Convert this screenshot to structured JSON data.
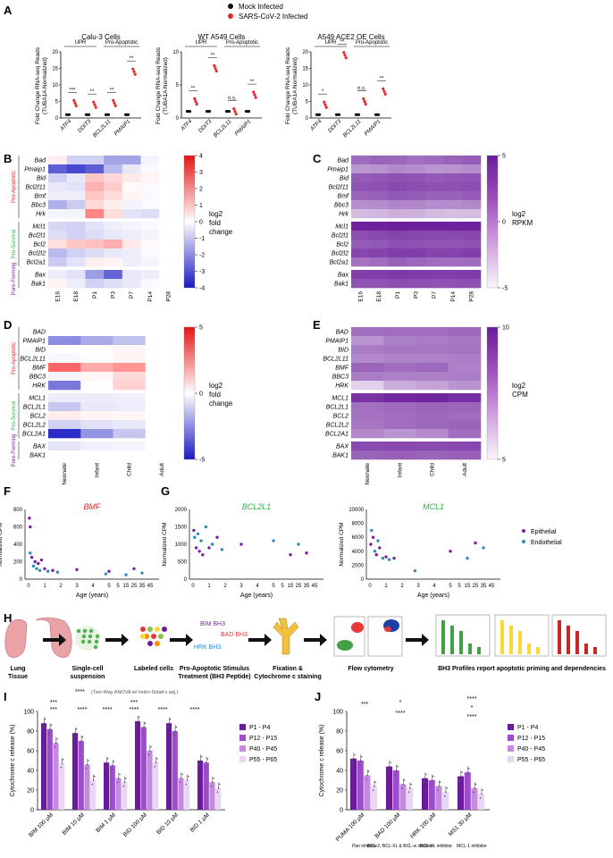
{
  "panels": {
    "A": "A",
    "B": "B",
    "C": "C",
    "D": "D",
    "E": "E",
    "F": "F",
    "G": "G",
    "H": "H",
    "I": "I",
    "J": "J"
  },
  "legend_top": {
    "mock": "Mock Infected",
    "sars": "SARS-CoV-2 Infected",
    "mock_color": "#111111",
    "sars_color": "#e8262b"
  },
  "a_charts": {
    "ylabel1": "Fold Change RNA-seq Reads",
    "ylabel2": "(TUBA1A Normalized)",
    "upr": "UPR",
    "proapop": "Pro-Apoptotic",
    "genes": [
      "ATF4",
      "DDIT3",
      "BCL2L11",
      "PMAIP1"
    ],
    "charts": [
      {
        "title": "Calu-3 Cells",
        "yticks": [
          "0",
          "5",
          "10",
          "15",
          "20"
        ],
        "sig": [
          "***",
          "**",
          "**",
          "**"
        ]
      },
      {
        "title": "WT A549 Cells",
        "yticks": [
          "0",
          "5",
          "10"
        ],
        "sig": [
          "**",
          "**",
          "n.s.",
          "**"
        ]
      },
      {
        "title": "A549 ACE2 OE Cells",
        "yticks": [
          "0",
          "5",
          "10",
          "15",
          "20"
        ],
        "sig": [
          "*",
          "**",
          "n.s.",
          "**"
        ]
      }
    ]
  },
  "mouse_genes": [
    "Bad",
    "Pmaip1",
    "Bid",
    "Bcl2l11",
    "Bmf",
    "Bbc3",
    "Hrk",
    "Mcl1",
    "Bcl2l1",
    "Bcl2",
    "Bcl2l2",
    "Bcl2a1",
    "Bax",
    "Bak1"
  ],
  "human_genes": [
    "BAD",
    "PMAIP1",
    "BID",
    "BCL2L11",
    "BMF",
    "BBC3",
    "HRK",
    "MCL1",
    "BCL2L1",
    "BCL2",
    "BCL2L2",
    "BCL2A1",
    "BAX",
    "BAK1"
  ],
  "groups": {
    "pro_apoptotic": "Pro-Apoptotic",
    "pro_survival": "Pro-Survival",
    "pore_forming": "Pore-Forming"
  },
  "b_cols": [
    "E16",
    "E18",
    "P1",
    "P3",
    "P7",
    "P14",
    "P28"
  ],
  "c_cols": [
    "E16",
    "E18",
    "P1",
    "P3",
    "P7",
    "P14",
    "P28"
  ],
  "de_cols": [
    "Neonate",
    "Infant",
    "Child",
    "Adult"
  ],
  "b_colorbar": {
    "ticks": [
      "4",
      "3",
      "2",
      "1",
      "0",
      "-1",
      "-2",
      "-3",
      "-4"
    ],
    "label1": "log",
    "label1_sub": "2",
    "label2": "fold",
    "label3": "change"
  },
  "c_colorbar": {
    "ticks": [
      "5",
      "0",
      "-5"
    ],
    "label1": "log",
    "label1_sub": "2",
    "label2": "RPKM"
  },
  "d_colorbar": {
    "ticks": [
      "5",
      "0",
      "-5"
    ],
    "label1": "log",
    "label1_sub": "2",
    "label2": "fold",
    "label3": "change"
  },
  "e_colorbar": {
    "ticks": [
      "10",
      "5"
    ],
    "label1": "log",
    "label1_sub": "2",
    "label2": "CPM"
  },
  "b_values": [
    [
      0.3,
      -0.8,
      -0.8,
      -1.6,
      -1.6,
      -0.2,
      0
    ],
    [
      -2.8,
      -3.2,
      -2.8,
      -1.2,
      -0.4,
      -0.1,
      0
    ],
    [
      -0.8,
      -0.4,
      1.0,
      0.7,
      0.4,
      0.2,
      0
    ],
    [
      -0.4,
      -0.5,
      1.4,
      0.9,
      0.1,
      -0.1,
      0
    ],
    [
      -0.3,
      -0.3,
      1.0,
      0.6,
      0.2,
      -0.1,
      0
    ],
    [
      -1.4,
      -0.9,
      0.7,
      0.3,
      -0.2,
      -0.1,
      0
    ],
    [
      -0.2,
      -0.2,
      2.1,
      0.6,
      -0.5,
      -0.6,
      0
    ],
    [
      -0.7,
      -0.8,
      -0.5,
      -0.3,
      -0.2,
      -0.1,
      0
    ],
    [
      -0.6,
      -0.8,
      -0.6,
      -0.4,
      -0.3,
      -0.2,
      0
    ],
    [
      0.6,
      1.0,
      1.1,
      1.4,
      0.4,
      0.1,
      0
    ],
    [
      -1.2,
      -0.8,
      -0.6,
      -0.4,
      -0.3,
      -0.1,
      0
    ],
    [
      -0.9,
      -0.5,
      0.3,
      0.2,
      -0.3,
      -0.2,
      0
    ],
    [
      -0.3,
      -0.5,
      -1.7,
      -2.7,
      -0.4,
      -0.3,
      0
    ],
    [
      0.2,
      -0.3,
      -0.8,
      -0.6,
      -0.4,
      -0.1,
      0
    ]
  ],
  "c_values": [
    [
      3.5,
      4.0,
      3.8,
      3.2,
      3.5,
      4.0,
      4.5
    ],
    [
      0.5,
      0.8,
      1.5,
      1.2,
      0.6,
      0.8,
      1.2
    ],
    [
      4.5,
      4.8,
      5.2,
      5.0,
      4.6,
      4.8,
      5.0
    ],
    [
      5.0,
      5.2,
      5.8,
      5.5,
      5.2,
      5.2,
      5.5
    ],
    [
      4.0,
      4.2,
      4.8,
      4.5,
      4.2,
      4.2,
      4.5
    ],
    [
      1.0,
      1.2,
      1.8,
      1.6,
      1.2,
      1.2,
      1.5
    ],
    [
      -2.0,
      -1.8,
      -1.2,
      -1.4,
      -2.0,
      -2.2,
      -2.0
    ],
    [
      8.5,
      8.6,
      8.8,
      8.7,
      8.6,
      8.5,
      8.6
    ],
    [
      5.5,
      5.8,
      6.2,
      6.0,
      5.8,
      5.8,
      6.0
    ],
    [
      4.5,
      4.8,
      5.4,
      5.2,
      5.0,
      5.0,
      5.2
    ],
    [
      6.0,
      6.2,
      6.6,
      6.5,
      6.2,
      6.2,
      6.5
    ],
    [
      3.0,
      3.4,
      4.2,
      3.8,
      3.4,
      3.2,
      3.4
    ],
    [
      6.5,
      6.6,
      6.9,
      6.8,
      6.6,
      6.6,
      6.8
    ],
    [
      5.0,
      5.2,
      5.6,
      5.4,
      5.2,
      5.2,
      5.4
    ]
  ],
  "d_values": [
    [
      0,
      0,
      0,
      0
    ],
    [
      -3.0,
      -2.2,
      -1.6,
      0
    ],
    [
      0,
      0,
      0.2,
      0
    ],
    [
      -0.2,
      0,
      0.3,
      0
    ],
    [
      4.0,
      2.2,
      2.8,
      0
    ],
    [
      -0.3,
      0.2,
      1.0,
      0
    ],
    [
      -3.5,
      0,
      1.2,
      0
    ],
    [
      -0.5,
      -0.5,
      -0.4,
      0
    ],
    [
      -1.5,
      -0.6,
      -0.5,
      0
    ],
    [
      0.5,
      0.3,
      0.2,
      0
    ],
    [
      -1.2,
      -0.8,
      -0.6,
      0
    ],
    [
      -5.5,
      -2.8,
      -1.5,
      0
    ],
    [
      -0.7,
      -0.4,
      -0.3,
      0
    ],
    [
      0,
      0,
      0,
      0
    ]
  ],
  "e_values": [
    [
      8.5,
      8.6,
      8.6,
      8.8
    ],
    [
      7.0,
      7.8,
      8.0,
      8.2
    ],
    [
      8.0,
      8.2,
      8.2,
      8.3
    ],
    [
      7.5,
      7.8,
      7.8,
      7.9
    ],
    [
      9.0,
      8.6,
      8.8,
      7.8
    ],
    [
      8.0,
      7.8,
      7.8,
      7.9
    ],
    [
      4.5,
      6.0,
      6.4,
      7.0
    ],
    [
      11.0,
      11.5,
      11.6,
      11.2
    ],
    [
      8.5,
      8.8,
      9.0,
      8.9
    ],
    [
      8.4,
      8.6,
      8.8,
      8.6
    ],
    [
      8.2,
      8.6,
      8.8,
      9.0
    ],
    [
      7.5,
      7.0,
      7.4,
      8.6
    ],
    [
      10.0,
      10.2,
      10.0,
      10.2
    ],
    [
      9.0,
      9.2,
      9.0,
      9.2
    ]
  ],
  "f": {
    "title": "BMF",
    "title_color": "#e8262b",
    "ylabel": "Normalized CPM",
    "xlabel": "Age (years)",
    "yticks": [
      "0",
      "200",
      "400",
      "600",
      "800"
    ],
    "xticks": [
      "0",
      "1",
      "2",
      "3",
      "4",
      "5",
      "5",
      "15",
      "25",
      "35",
      "45"
    ]
  },
  "g1": {
    "title": "BCL2L1",
    "title_color": "#2db34a",
    "ylabel": "Normalized CPM",
    "xlabel": "Age (years)",
    "yticks": [
      "0",
      "500",
      "1000",
      "1500",
      "2000"
    ],
    "xticks": [
      "0",
      "1",
      "2",
      "3",
      "4",
      "5",
      "5",
      "15",
      "25",
      "35",
      "45"
    ]
  },
  "g2": {
    "title": "MCL1",
    "title_color": "#2db34a",
    "ylabel": "Normalized CPM",
    "xlabel": "Age (years)",
    "yticks": [
      "0",
      "2000",
      "4000",
      "6000",
      "8000",
      "10000"
    ],
    "xticks": [
      "0",
      "1",
      "2",
      "3",
      "4",
      "5",
      "5",
      "15",
      "25",
      "35",
      "45"
    ]
  },
  "fg_legend": {
    "epithelial": "Epithelial",
    "endothelial": "Endothelial",
    "epi_color": "#7b1fa2",
    "endo_color": "#2a8fb8"
  },
  "h": {
    "steps": [
      "Lung Tissue",
      "Single-cell suspension",
      "Labeled cells",
      "Pro-Apoptotic Stimulus Treatment (BH3 Peptide)",
      "Fixation & Cytochrome c staining",
      "Flow cytometry",
      "BH3 Profiles report apoptotic priming and dependencies"
    ],
    "peptides": [
      "BIM BH3",
      "BAD BH3",
      "HRK BH3"
    ]
  },
  "i": {
    "ylabel": "Cytochrome c release (%)",
    "yticks": [
      "0",
      "20",
      "40",
      "60",
      "80",
      "100"
    ],
    "note": "(Two-Way ANOVA w/ Holm-Sidak's adj.)",
    "categories": [
      "BIM 100 µM",
      "BIM 10 µM",
      "BIM 1 µM",
      "BID 100 µM",
      "BID 10 µM",
      "BID 1 µM"
    ],
    "series": [
      {
        "name": "P1 - P4",
        "color": "#6a1b9a",
        "values": [
          88,
          78,
          48,
          90,
          88,
          50
        ]
      },
      {
        "name": "P12 - P15",
        "color": "#9c4dcc",
        "values": [
          82,
          70,
          45,
          84,
          80,
          48
        ]
      },
      {
        "name": "P40 - P45",
        "color": "#c58ae0",
        "values": [
          68,
          46,
          32,
          60,
          32,
          28
        ]
      },
      {
        "name": "P55 - P65",
        "color": "#ead5f5",
        "values": [
          47,
          30,
          28,
          48,
          30,
          22
        ]
      }
    ],
    "sig": [
      "***",
      "***",
      "****",
      "****",
      "***",
      "****",
      "****",
      "****"
    ]
  },
  "j": {
    "ylabel": "Cytochrome c release (%)",
    "yticks": [
      "0",
      "20",
      "40",
      "60",
      "80",
      "100"
    ],
    "categories": [
      "PUMA 100 µM",
      "BAD 100 µM",
      "HRK 100 µM",
      "MS1 30 µM"
    ],
    "sublabels": [
      "Pan inhibitor",
      "BCL-2, BCL-XL & BCL-w inhibitor",
      "BCL-XL inhibitor",
      "MCL-1 inhibitor"
    ],
    "series": [
      {
        "name": "P1 - P4",
        "color": "#6a1b9a",
        "values": [
          52,
          44,
          32,
          34
        ]
      },
      {
        "name": "P12 - P15",
        "color": "#9c4dcc",
        "values": [
          50,
          40,
          30,
          38
        ]
      },
      {
        "name": "P40 - P45",
        "color": "#c58ae0",
        "values": [
          35,
          26,
          24,
          22
        ]
      },
      {
        "name": "P55 - P65",
        "color": "#ead5f5",
        "values": [
          24,
          22,
          18,
          16
        ]
      }
    ],
    "sig": [
      "***",
      "*",
      "****",
      "****",
      "*",
      "****"
    ]
  }
}
